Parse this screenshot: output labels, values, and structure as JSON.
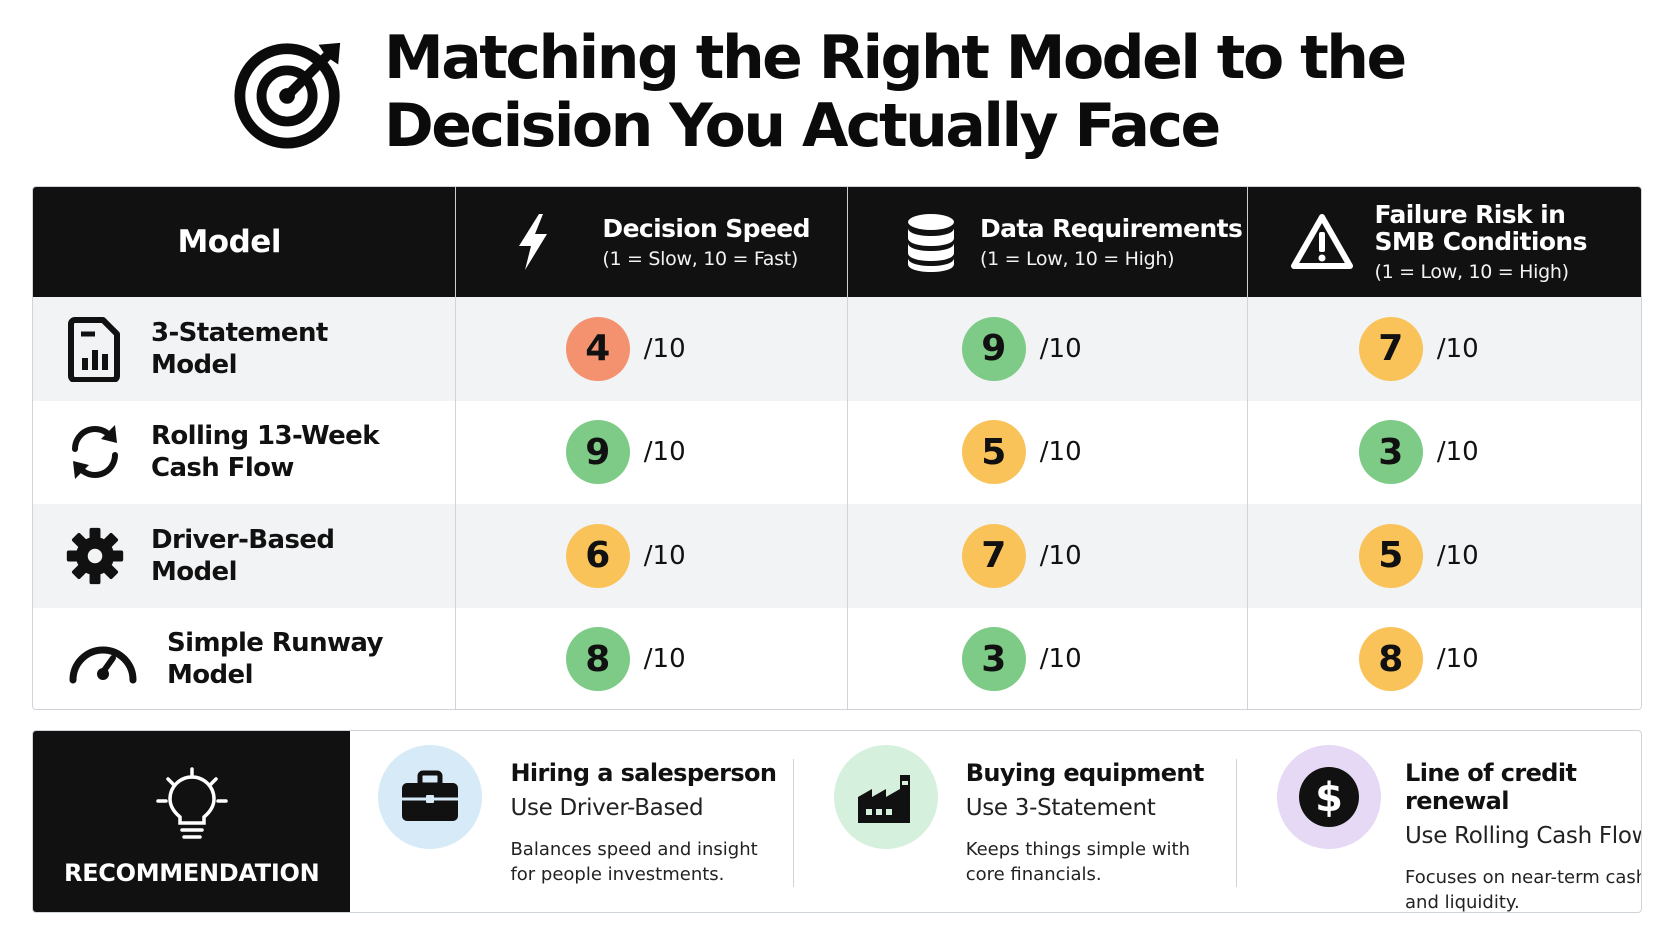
{
  "title": {
    "line1": "Matching the Right Model to the",
    "line2": "Decision You Actually Face",
    "icon": "target-icon"
  },
  "table": {
    "headers": [
      {
        "title": "Model",
        "sub": "",
        "icon": ""
      },
      {
        "title": "Decision Speed",
        "sub": "(1 = Slow, 10 = Fast)",
        "icon": "lightning-icon"
      },
      {
        "title": "Data Requirements",
        "sub": "(1 = Low, 10 = High)",
        "icon": "database-icon"
      },
      {
        "title": "Failure Risk in SMB Conditions",
        "sub": "(1 = Low, 10 = High)",
        "icon": "warning-icon"
      }
    ],
    "score_suffix": "/10",
    "rows": [
      {
        "name": "3-Statement Model",
        "icon": "report-document-icon",
        "speed": "4",
        "data": "9",
        "risk": "7"
      },
      {
        "name": "Rolling 13-Week Cash Flow",
        "icon": "refresh-cycle-icon",
        "speed": "9",
        "data": "5",
        "risk": "3"
      },
      {
        "name": "Driver-Based Model",
        "icon": "gear-icon",
        "speed": "6",
        "data": "7",
        "risk": "5"
      },
      {
        "name": "Simple Runway Model",
        "icon": "speedometer-icon",
        "speed": "8",
        "data": "3",
        "risk": "8"
      }
    ]
  },
  "colors": {
    "score_green": "#7dcb86",
    "score_orange": "#f9c35a",
    "score_red": "#f49270",
    "header_bg": "#111111",
    "row_alt": "#f1f3f5"
  },
  "recommendation": {
    "label": "RECOMMENDATION",
    "icon": "lightbulb-icon",
    "items": [
      {
        "heading": "Hiring a salesperson",
        "use": "Use Driver-Based",
        "desc": "Balances speed and insight for people investments.",
        "icon": "briefcase-icon",
        "color": "#d6eaf8"
      },
      {
        "heading": "Buying equipment",
        "use": "Use 3-Statement",
        "desc": "Keeps things simple with core financials.",
        "icon": "factory-icon",
        "color": "#d5f0dd"
      },
      {
        "heading": "Line of credit renewal",
        "use": "Use Rolling Cash Flow",
        "desc": "Focuses on near-term cash and liquidity.",
        "icon": "dollar-icon",
        "color": "#e6d9f5"
      }
    ]
  }
}
